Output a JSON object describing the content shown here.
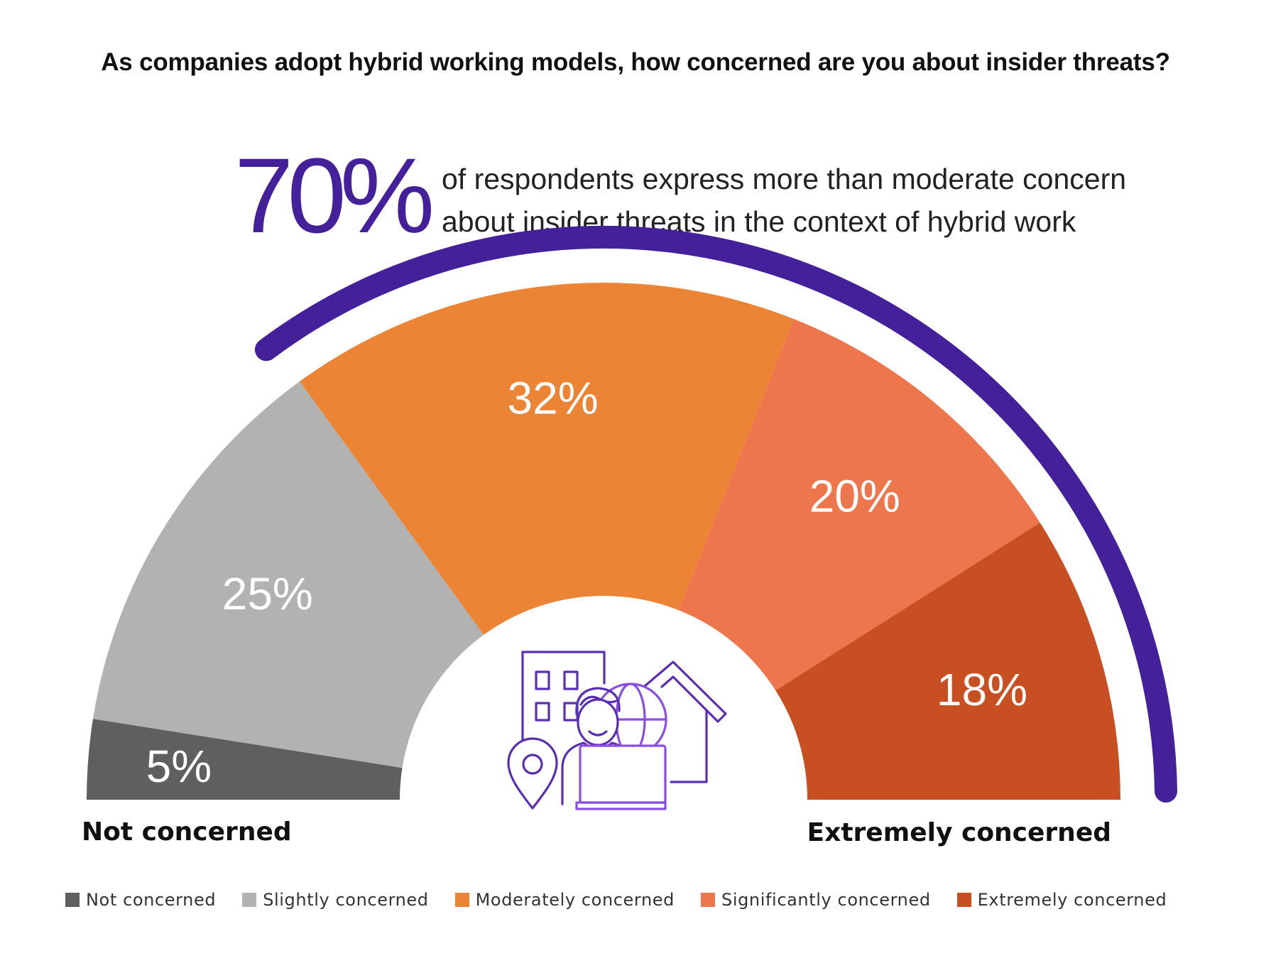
{
  "title": "As companies adopt hybrid working models, how concerned are you about insider threats?",
  "headline": {
    "stat": "70%",
    "line1": "of respondents express more than moderate concern",
    "line2": "about insider threats in the context of hybrid work",
    "color": "#44209a"
  },
  "chart_data": {
    "type": "pie",
    "subtype": "semi-circle gauge",
    "title": "As companies adopt hybrid working models, how concerned are you about insider threats?",
    "categories": [
      "Not concerned",
      "Slightly concerned",
      "Moderately concerned",
      "Significantly concerned",
      "Extremely concerned"
    ],
    "values": [
      5,
      25,
      32,
      20,
      18
    ],
    "labels": [
      "5%",
      "25%",
      "32%",
      "20%",
      "18%"
    ],
    "colors": [
      "#5f5f5f",
      "#b2b2b2",
      "#ec8435",
      "#ee764c",
      "#c84f22"
    ],
    "highlight": {
      "text": "70%",
      "covers": [
        "Moderately concerned",
        "Significantly concerned",
        "Extremely concerned"
      ],
      "color": "#44209a"
    },
    "scale_start_label": "Not concerned",
    "scale_end_label": "Extremely concerned",
    "legend_position": "bottom"
  },
  "legend": [
    {
      "label": "Not concerned",
      "color": "#5f5f5f"
    },
    {
      "label": "Slightly concerned",
      "color": "#b2b2b2"
    },
    {
      "label": "Moderately concerned",
      "color": "#ec8435"
    },
    {
      "label": "Significantly concerned",
      "color": "#ee764c"
    },
    {
      "label": "Extremely concerned",
      "color": "#c84f22"
    }
  ],
  "icon": "hybrid-worker-icon"
}
